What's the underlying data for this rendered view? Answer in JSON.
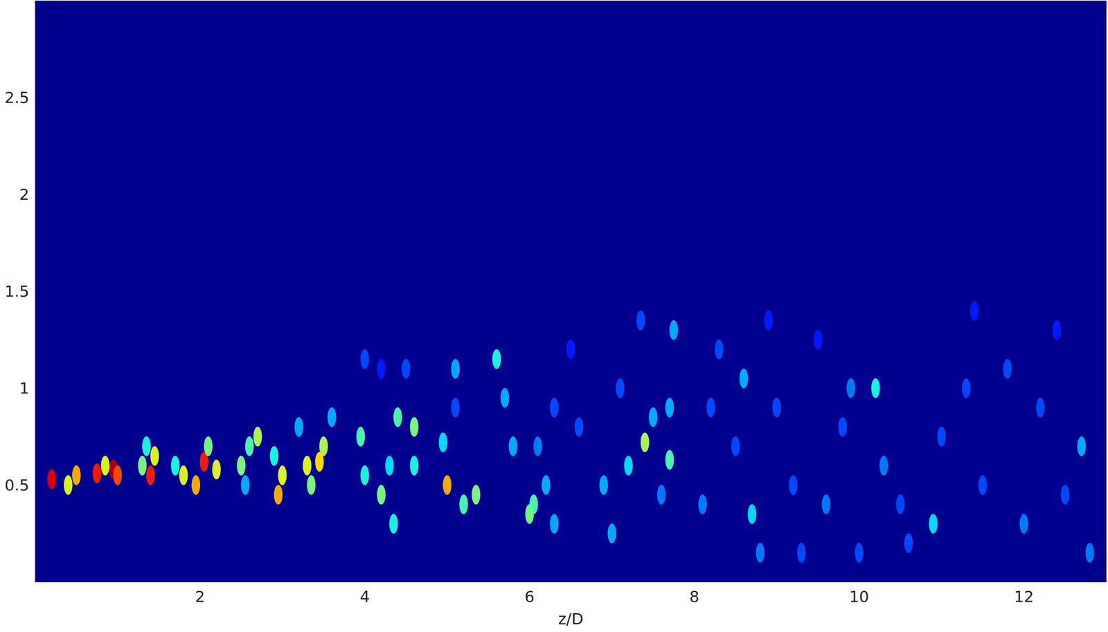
{
  "chart_data": {
    "type": "scatter",
    "x_label": "z/D",
    "xlim": [
      0,
      13
    ],
    "xticks": [
      2,
      4,
      6,
      8,
      10,
      12
    ],
    "ylim": [
      0,
      3
    ],
    "yticks": [
      0.5,
      1,
      1.5,
      2,
      2.5
    ],
    "grid": false,
    "value_range": [
      0,
      1
    ],
    "points": [
      [
        0.2,
        0.53,
        0.9
      ],
      [
        0.4,
        0.5,
        0.6
      ],
      [
        0.5,
        0.55,
        0.7
      ],
      [
        0.75,
        0.56,
        0.85
      ],
      [
        0.95,
        0.58,
        0.95
      ],
      [
        1.0,
        0.55,
        0.8
      ],
      [
        0.85,
        0.6,
        0.6
      ],
      [
        1.3,
        0.6,
        0.5
      ],
      [
        1.4,
        0.55,
        0.85
      ],
      [
        1.45,
        0.65,
        0.6
      ],
      [
        1.35,
        0.7,
        0.4
      ],
      [
        1.8,
        0.55,
        0.6
      ],
      [
        1.95,
        0.5,
        0.7
      ],
      [
        2.05,
        0.62,
        0.85
      ],
      [
        2.1,
        0.7,
        0.5
      ],
      [
        2.2,
        0.58,
        0.6
      ],
      [
        1.7,
        0.6,
        0.4
      ],
      [
        2.5,
        0.6,
        0.5
      ],
      [
        2.6,
        0.7,
        0.45
      ],
      [
        2.7,
        0.75,
        0.55
      ],
      [
        2.55,
        0.5,
        0.3
      ],
      [
        2.95,
        0.45,
        0.7
      ],
      [
        3.0,
        0.55,
        0.6
      ],
      [
        2.9,
        0.65,
        0.4
      ],
      [
        3.2,
        0.8,
        0.3
      ],
      [
        3.3,
        0.6,
        0.6
      ],
      [
        3.35,
        0.5,
        0.5
      ],
      [
        3.5,
        0.7,
        0.55
      ],
      [
        3.45,
        0.62,
        0.65
      ],
      [
        3.6,
        0.85,
        0.3
      ],
      [
        4.0,
        0.55,
        0.4
      ],
      [
        3.95,
        0.75,
        0.45
      ],
      [
        4.2,
        0.45,
        0.5
      ],
      [
        4.3,
        0.6,
        0.35
      ],
      [
        4.35,
        0.3,
        0.4
      ],
      [
        4.4,
        0.85,
        0.45
      ],
      [
        4.6,
        0.8,
        0.5
      ],
      [
        4.6,
        0.6,
        0.4
      ],
      [
        4.0,
        1.15,
        0.2
      ],
      [
        4.2,
        1.1,
        0.15
      ],
      [
        4.5,
        1.1,
        0.2
      ],
      [
        5.0,
        0.5,
        0.7
      ],
      [
        5.2,
        0.4,
        0.45
      ],
      [
        5.35,
        0.45,
        0.5
      ],
      [
        4.95,
        0.72,
        0.35
      ],
      [
        5.1,
        0.9,
        0.2
      ],
      [
        5.1,
        1.1,
        0.3
      ],
      [
        5.6,
        1.15,
        0.4
      ],
      [
        5.7,
        0.95,
        0.3
      ],
      [
        5.8,
        0.7,
        0.3
      ],
      [
        6.0,
        0.35,
        0.5
      ],
      [
        6.05,
        0.4,
        0.45
      ],
      [
        6.2,
        0.5,
        0.3
      ],
      [
        6.1,
        0.7,
        0.25
      ],
      [
        6.3,
        0.9,
        0.2
      ],
      [
        6.5,
        1.2,
        0.15
      ],
      [
        6.3,
        0.3,
        0.3
      ],
      [
        6.6,
        0.8,
        0.2
      ],
      [
        6.9,
        0.5,
        0.3
      ],
      [
        7.0,
        0.25,
        0.3
      ],
      [
        7.2,
        0.6,
        0.35
      ],
      [
        7.4,
        0.72,
        0.55
      ],
      [
        7.5,
        0.85,
        0.3
      ],
      [
        7.7,
        0.63,
        0.45
      ],
      [
        7.75,
        1.3,
        0.3
      ],
      [
        7.35,
        1.35,
        0.2
      ],
      [
        7.7,
        0.9,
        0.3
      ],
      [
        7.1,
        1.0,
        0.2
      ],
      [
        7.6,
        0.45,
        0.25
      ],
      [
        8.1,
        0.4,
        0.25
      ],
      [
        8.2,
        0.9,
        0.2
      ],
      [
        8.3,
        1.2,
        0.2
      ],
      [
        8.6,
        1.05,
        0.3
      ],
      [
        8.7,
        0.35,
        0.35
      ],
      [
        8.8,
        0.15,
        0.25
      ],
      [
        8.5,
        0.7,
        0.2
      ],
      [
        9.0,
        0.9,
        0.2
      ],
      [
        9.2,
        0.5,
        0.2
      ],
      [
        9.6,
        0.4,
        0.25
      ],
      [
        9.8,
        0.8,
        0.2
      ],
      [
        9.9,
        1.0,
        0.25
      ],
      [
        10.2,
        1.0,
        0.4
      ],
      [
        10.3,
        0.6,
        0.25
      ],
      [
        10.5,
        0.4,
        0.2
      ],
      [
        10.9,
        0.3,
        0.35
      ],
      [
        11.0,
        0.75,
        0.2
      ],
      [
        11.3,
        1.0,
        0.2
      ],
      [
        11.5,
        0.5,
        0.2
      ],
      [
        11.8,
        1.1,
        0.2
      ],
      [
        12.0,
        0.3,
        0.25
      ],
      [
        12.2,
        0.9,
        0.2
      ],
      [
        12.5,
        0.45,
        0.2
      ],
      [
        12.7,
        0.7,
        0.3
      ],
      [
        12.8,
        0.15,
        0.25
      ],
      [
        11.4,
        1.4,
        0.15
      ],
      [
        12.4,
        1.3,
        0.15
      ],
      [
        8.9,
        1.35,
        0.15
      ],
      [
        9.5,
        1.25,
        0.15
      ],
      [
        10.6,
        0.2,
        0.2
      ],
      [
        9.3,
        0.15,
        0.2
      ],
      [
        10.0,
        0.15,
        0.2
      ]
    ]
  }
}
